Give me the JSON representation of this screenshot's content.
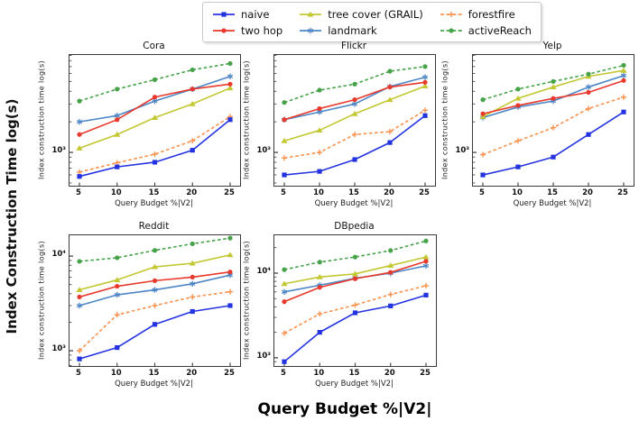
{
  "figure": {
    "y_label": "Index Construction Time log(s)",
    "x_label": "Query Budget %|V2|"
  },
  "legend": {
    "position": "top-center",
    "items": [
      {
        "label": "naive",
        "color": "#2433e0",
        "marker": "square",
        "linestyle": "solid"
      },
      {
        "label": "two hop",
        "color": "#e8392c",
        "marker": "circle",
        "linestyle": "solid"
      },
      {
        "label": "tree cover (GRAIL)",
        "color": "#c3c832",
        "marker": "triangle",
        "linestyle": "solid"
      },
      {
        "label": "landmark",
        "color": "#4d86c6",
        "marker": "star",
        "linestyle": "solid"
      },
      {
        "label": "forestfire",
        "color": "#f9924e",
        "marker": "plus",
        "linestyle": "dashed"
      },
      {
        "label": "activeReach",
        "color": "#46a349",
        "marker": "circle",
        "linestyle": "dashed"
      }
    ]
  },
  "chart_data": [
    {
      "type": "line",
      "title": "Cora",
      "xlabel": "Query Budget %|V2|",
      "ylabel": "Index construction time log(s)",
      "x": [
        5,
        10,
        15,
        20,
        25
      ],
      "ylim": [
        470,
        9100
      ],
      "grid": false,
      "ytick_values": [
        1000
      ],
      "ytick_labels": [
        "10³"
      ],
      "series": [
        {
          "name": "naive",
          "values": [
            580,
            720,
            800,
            1050,
            2100
          ]
        },
        {
          "name": "two hop",
          "values": [
            1500,
            2100,
            3500,
            4200,
            4700
          ]
        },
        {
          "name": "tree cover (GRAIL)",
          "values": [
            1100,
            1500,
            2200,
            3000,
            4300
          ]
        },
        {
          "name": "landmark",
          "values": [
            2000,
            2300,
            3200,
            4200,
            5600
          ]
        },
        {
          "name": "forestfire",
          "values": [
            640,
            790,
            960,
            1300,
            2250
          ]
        },
        {
          "name": "activeReach",
          "values": [
            3200,
            4200,
            5200,
            6500,
            7500
          ]
        }
      ]
    },
    {
      "type": "line",
      "title": "Flickr",
      "xlabel": "Query Budget %|V2|",
      "ylabel": "Index construction time log(s)",
      "x": [
        5,
        10,
        15,
        20,
        25
      ],
      "ylim": [
        470,
        9100
      ],
      "grid": false,
      "ytick_values": [
        1000
      ],
      "ytick_labels": [
        "10³"
      ],
      "series": [
        {
          "name": "naive",
          "values": [
            600,
            650,
            850,
            1250,
            2300
          ]
        },
        {
          "name": "two hop",
          "values": [
            2100,
            2700,
            3300,
            4400,
            4900
          ]
        },
        {
          "name": "tree cover (GRAIL)",
          "values": [
            1300,
            1650,
            2400,
            3300,
            4500
          ]
        },
        {
          "name": "landmark",
          "values": [
            2100,
            2500,
            3000,
            4450,
            5500
          ]
        },
        {
          "name": "forestfire",
          "values": [
            880,
            1000,
            1500,
            1600,
            2600
          ]
        },
        {
          "name": "activeReach",
          "values": [
            3100,
            4100,
            4700,
            6300,
            7000
          ]
        }
      ]
    },
    {
      "type": "line",
      "title": "Yelp",
      "xlabel": "Query Budget %|V2|",
      "ylabel": "Index construction time log(s)",
      "x": [
        5,
        10,
        15,
        20,
        25
      ],
      "ylim": [
        470,
        9100
      ],
      "grid": false,
      "ytick_values": [
        1000
      ],
      "ytick_labels": [
        "10³"
      ],
      "series": [
        {
          "name": "naive",
          "values": [
            600,
            720,
            900,
            1500,
            2500
          ]
        },
        {
          "name": "two hop",
          "values": [
            2400,
            2900,
            3400,
            3900,
            5100
          ]
        },
        {
          "name": "tree cover (GRAIL)",
          "values": [
            2250,
            3400,
            4400,
            5600,
            6400
          ]
        },
        {
          "name": "landmark",
          "values": [
            2200,
            2800,
            3200,
            4400,
            5700
          ]
        },
        {
          "name": "forestfire",
          "values": [
            950,
            1300,
            1750,
            2700,
            3500
          ]
        },
        {
          "name": "activeReach",
          "values": [
            3300,
            4200,
            5000,
            5900,
            7200
          ]
        }
      ]
    },
    {
      "type": "line",
      "title": "Reddit",
      "xlabel": "Query Budget %|V2|",
      "ylabel": "Index construction time log(s)",
      "x": [
        5,
        10,
        15,
        20,
        25
      ],
      "ylim": [
        690,
        16600
      ],
      "grid": false,
      "ytick_values": [
        1000,
        10000
      ],
      "ytick_labels": [
        "10³",
        "10⁴"
      ],
      "series": [
        {
          "name": "naive",
          "values": [
            820,
            1080,
            1900,
            2600,
            3000
          ]
        },
        {
          "name": "two hop",
          "values": [
            3700,
            4800,
            5500,
            6000,
            6800
          ]
        },
        {
          "name": "tree cover (GRAIL)",
          "values": [
            4400,
            5600,
            7700,
            8400,
            10300
          ]
        },
        {
          "name": "landmark",
          "values": [
            3000,
            3900,
            4400,
            5100,
            6300
          ]
        },
        {
          "name": "forestfire",
          "values": [
            1000,
            2400,
            3000,
            3700,
            4200
          ]
        },
        {
          "name": "activeReach",
          "values": [
            8800,
            9600,
            11500,
            13500,
            15500
          ]
        }
      ]
    },
    {
      "type": "line",
      "title": "DBpedia",
      "xlabel": "Query Budget %|V2|",
      "ylabel": "Index construction time log(s)",
      "x": [
        5,
        10,
        15,
        20,
        25
      ],
      "ylim": [
        800,
        28000
      ],
      "grid": false,
      "ytick_values": [
        1000,
        10000
      ],
      "ytick_labels": [
        "10³",
        "10⁴"
      ],
      "series": [
        {
          "name": "naive",
          "values": [
            900,
            2000,
            3400,
            4100,
            5500
          ]
        },
        {
          "name": "two hop",
          "values": [
            4600,
            6800,
            8600,
            10200,
            13800
          ]
        },
        {
          "name": "tree cover (GRAIL)",
          "values": [
            7500,
            9000,
            9800,
            12300,
            15500
          ]
        },
        {
          "name": "landmark",
          "values": [
            6000,
            7200,
            8700,
            10000,
            12200
          ]
        },
        {
          "name": "forestfire",
          "values": [
            1950,
            3300,
            4200,
            5600,
            7100
          ]
        },
        {
          "name": "activeReach",
          "values": [
            11000,
            13500,
            15500,
            18500,
            24000
          ]
        }
      ]
    }
  ]
}
